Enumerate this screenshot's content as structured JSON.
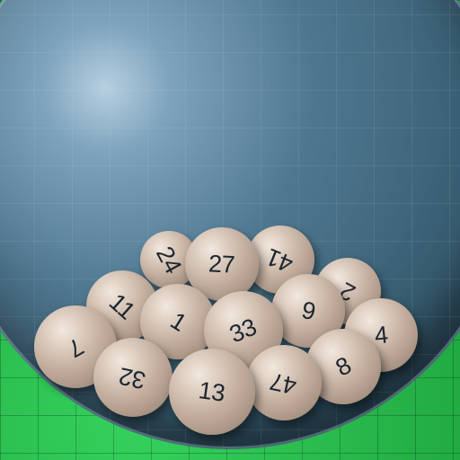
{
  "scene": {
    "balls": [
      {
        "number": "24"
      },
      {
        "number": "41"
      },
      {
        "number": "27"
      },
      {
        "number": "2"
      },
      {
        "number": "11"
      },
      {
        "number": "1"
      },
      {
        "number": "9"
      },
      {
        "number": "33"
      },
      {
        "number": "4"
      },
      {
        "number": "7"
      },
      {
        "number": "32"
      },
      {
        "number": "8"
      },
      {
        "number": "47"
      },
      {
        "number": "13"
      }
    ],
    "colors": {
      "ball": "#c8b3a3",
      "number": "#1d2630",
      "globe": "#4f7890",
      "background": "#23b84a"
    }
  }
}
